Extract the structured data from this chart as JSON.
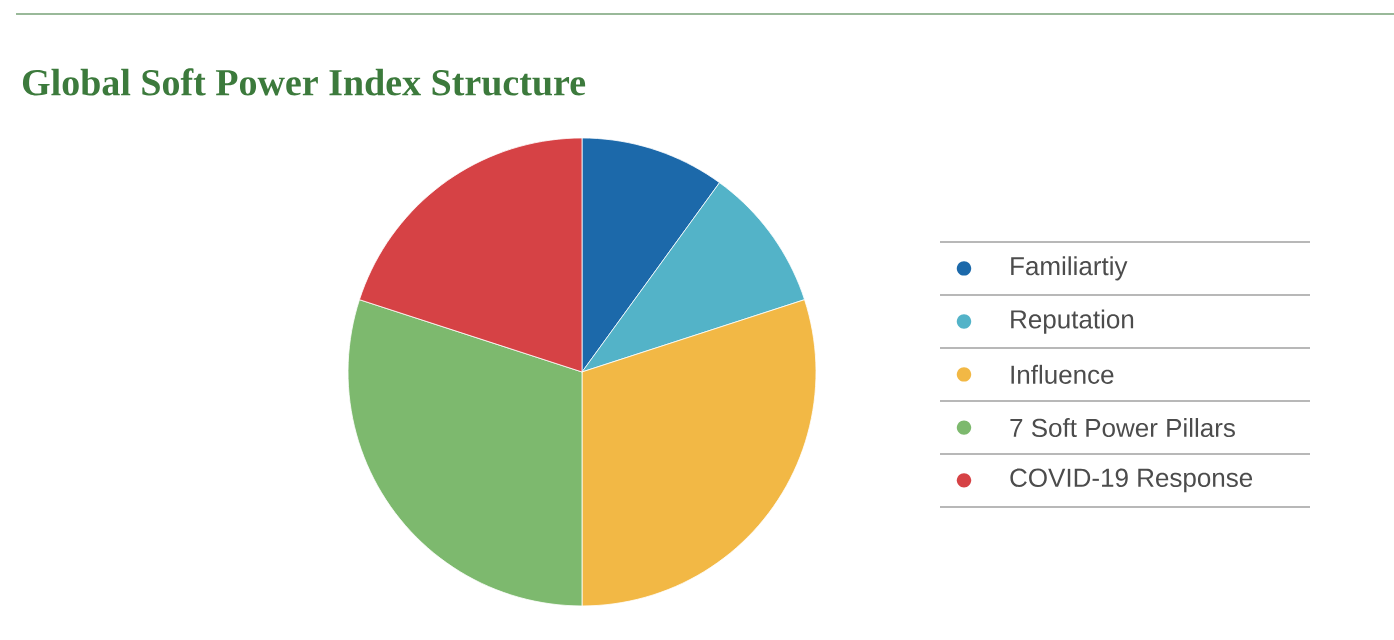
{
  "chart_data": {
    "type": "pie",
    "title": "Global Soft Power Index Structure",
    "categories": [
      "Familiartiy",
      "Reputation",
      "Influence",
      "7 Soft Power Pillars",
      "COVID-19 Response"
    ],
    "values": [
      10,
      10,
      30,
      30,
      20
    ],
    "colors": [
      "#1c69aa",
      "#53b3c8",
      "#f2b845",
      "#7db96e",
      "#d64245"
    ],
    "legend": "right"
  }
}
